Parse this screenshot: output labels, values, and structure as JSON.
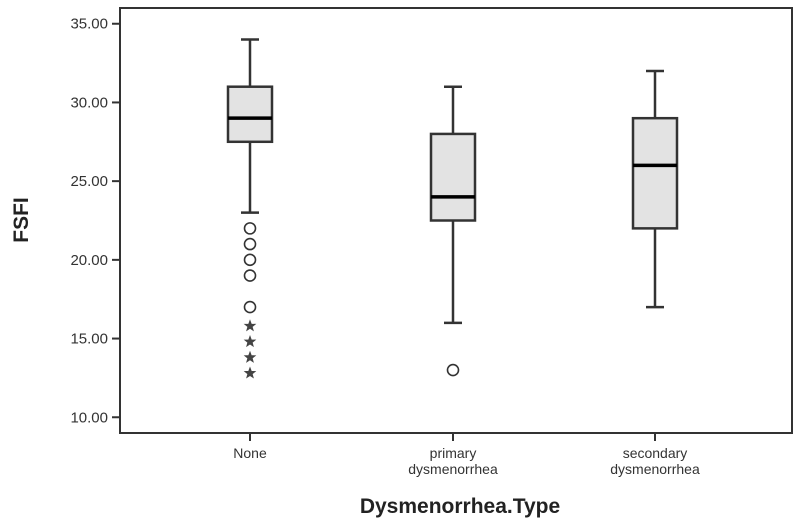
{
  "chart_data": {
    "type": "box",
    "xlabel": "Dysmenorrhea.Type",
    "ylabel": "FSFI",
    "ylim": [
      9,
      36
    ],
    "yticks": [
      "10.00",
      "15.00",
      "20.00",
      "25.00",
      "30.00",
      "35.00"
    ],
    "categories": [
      [
        "None"
      ],
      [
        "primary",
        "dysmenorrhea"
      ],
      [
        "secondary",
        "dysmenorrhea"
      ]
    ],
    "boxes": [
      {
        "whisker_low": 23,
        "q1": 27.5,
        "median": 29,
        "q3": 31,
        "whisker_high": 34,
        "outliers": [
          22,
          21,
          20,
          19,
          17
        ],
        "extremes": [
          15.8,
          14.8,
          13.8,
          12.8
        ]
      },
      {
        "whisker_low": 16,
        "q1": 22.5,
        "median": 24,
        "q3": 28,
        "whisker_high": 31,
        "outliers": [
          13
        ],
        "extremes": []
      },
      {
        "whisker_low": 17,
        "q1": 22,
        "median": 26,
        "q3": 29,
        "whisker_high": 32,
        "outliers": [],
        "extremes": []
      }
    ],
    "colors": {
      "box_fill": "#e3e3e3",
      "stroke": "#333333",
      "background": "#ffffff"
    },
    "grid": false,
    "legend": "none"
  }
}
